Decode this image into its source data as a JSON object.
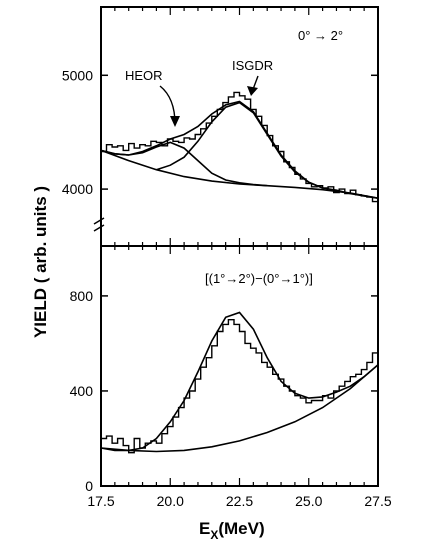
{
  "chart_data": [
    {
      "type": "line",
      "panel": "top",
      "annotation": "0° → 2°",
      "xlim": [
        17.5,
        27.5
      ],
      "ylim": [
        3500,
        5600
      ],
      "yticks": [
        4000,
        5000
      ],
      "ytick_labels": [
        "4000",
        "5000"
      ],
      "peak_labels": [
        "HEOR",
        "ISGDR"
      ],
      "series": [
        {
          "name": "Data (histogram)",
          "x": [
            17.5,
            17.7,
            17.9,
            18.1,
            18.3,
            18.5,
            18.7,
            18.9,
            19.1,
            19.3,
            19.5,
            19.7,
            19.9,
            20.1,
            20.3,
            20.5,
            20.7,
            20.9,
            21.1,
            21.3,
            21.5,
            21.7,
            21.9,
            22.1,
            22.3,
            22.5,
            22.7,
            22.9,
            23.1,
            23.3,
            23.5,
            23.7,
            23.9,
            24.1,
            24.3,
            24.5,
            24.7,
            24.9,
            25.1,
            25.3,
            25.5,
            25.7,
            25.9,
            26.1,
            26.3,
            26.5,
            26.7,
            26.9,
            27.1,
            27.3
          ],
          "y": [
            4330,
            4390,
            4370,
            4380,
            4340,
            4400,
            4360,
            4390,
            4380,
            4420,
            4410,
            4380,
            4440,
            4420,
            4410,
            4450,
            4440,
            4480,
            4530,
            4580,
            4640,
            4700,
            4760,
            4810,
            4850,
            4820,
            4790,
            4700,
            4640,
            4560,
            4470,
            4380,
            4330,
            4240,
            4190,
            4130,
            4090,
            4050,
            4020,
            4030,
            4010,
            4020,
            3970,
            4000,
            3960,
            3990,
            3950,
            3940,
            3930,
            3890
          ]
        },
        {
          "name": "Background",
          "x": [
            17.5,
            18.5,
            19.5,
            20.5,
            21.5,
            22.5,
            23.5,
            24.5,
            25.5,
            26.5,
            27.5
          ],
          "y": [
            4340,
            4250,
            4170,
            4110,
            4070,
            4045,
            4030,
            4015,
            3995,
            3965,
            3920
          ]
        },
        {
          "name": "HEOR component",
          "x": [
            17.5,
            18.0,
            18.5,
            19.0,
            19.5,
            20.0,
            20.5,
            21.0,
            21.5,
            22.0,
            22.5,
            23.0,
            23.5
          ],
          "y": [
            4340,
            4310,
            4300,
            4320,
            4370,
            4410,
            4360,
            4250,
            4140,
            4080,
            4055,
            4040,
            4030
          ]
        },
        {
          "name": "ISGDR component",
          "x": [
            19.5,
            20.0,
            20.5,
            21.0,
            21.5,
            22.0,
            22.5,
            23.0,
            23.5,
            24.0,
            24.5,
            25.0,
            25.5
          ],
          "y": [
            4170,
            4210,
            4280,
            4420,
            4590,
            4720,
            4760,
            4670,
            4480,
            4290,
            4150,
            4060,
            4010
          ]
        },
        {
          "name": "Total fit",
          "x": [
            17.5,
            18.0,
            18.5,
            19.0,
            19.5,
            20.0,
            20.5,
            21.0,
            21.5,
            22.0,
            22.5,
            23.0,
            23.5,
            24.0,
            24.5,
            25.0,
            25.5,
            26.0,
            26.5,
            27.0,
            27.5
          ],
          "y": [
            4340,
            4310,
            4300,
            4330,
            4380,
            4440,
            4480,
            4550,
            4660,
            4740,
            4770,
            4680,
            4490,
            4300,
            4160,
            4060,
            4010,
            3990,
            3960,
            3940,
            3920
          ]
        }
      ]
    },
    {
      "type": "line",
      "panel": "bottom",
      "annotation": "[(1°→2°)−(0°→1°)]",
      "xlabel": "E",
      "xlabel_sub": "X",
      "xlabel_unit": "(MeV)",
      "xlim": [
        17.5,
        27.5
      ],
      "ylim": [
        0,
        1010
      ],
      "xticks": [
        17.5,
        20.0,
        22.5,
        25.0,
        27.5
      ],
      "xtick_labels": [
        "17.5",
        "20.0",
        "22.5",
        "25.0",
        "27.5"
      ],
      "yticks": [
        0,
        400,
        800
      ],
      "ytick_labels": [
        "0",
        "400",
        "800"
      ],
      "series": [
        {
          "name": "Data (histogram)",
          "x": [
            17.5,
            17.7,
            17.9,
            18.1,
            18.3,
            18.5,
            18.7,
            18.9,
            19.1,
            19.3,
            19.5,
            19.7,
            19.9,
            20.1,
            20.3,
            20.5,
            20.7,
            20.9,
            21.1,
            21.3,
            21.5,
            21.7,
            21.9,
            22.1,
            22.3,
            22.5,
            22.7,
            22.9,
            23.1,
            23.3,
            23.5,
            23.7,
            23.9,
            24.1,
            24.3,
            24.5,
            24.7,
            24.9,
            25.1,
            25.3,
            25.5,
            25.7,
            25.9,
            26.1,
            26.3,
            26.5,
            26.7,
            26.9,
            27.1,
            27.3
          ],
          "y": [
            200,
            210,
            180,
            200,
            170,
            140,
            200,
            160,
            180,
            190,
            180,
            220,
            250,
            290,
            330,
            370,
            400,
            450,
            500,
            540,
            590,
            650,
            680,
            700,
            680,
            650,
            600,
            580,
            560,
            520,
            500,
            470,
            450,
            420,
            400,
            380,
            370,
            350,
            360,
            360,
            380,
            370,
            400,
            420,
            440,
            460,
            470,
            490,
            520,
            560
          ]
        },
        {
          "name": "Background",
          "x": [
            17.5,
            18.5,
            19.5,
            20.5,
            21.5,
            22.5,
            23.5,
            24.5,
            25.5,
            26.5,
            27.5
          ],
          "y": [
            160,
            150,
            145,
            150,
            165,
            190,
            225,
            270,
            330,
            410,
            510
          ]
        },
        {
          "name": "Total fit",
          "x": [
            17.5,
            18.0,
            18.5,
            19.0,
            19.5,
            20.0,
            20.5,
            21.0,
            21.5,
            22.0,
            22.5,
            23.0,
            23.5,
            24.0,
            24.5,
            25.0,
            25.5,
            26.0,
            26.5,
            27.0,
            27.5
          ],
          "y": [
            160,
            150,
            150,
            160,
            200,
            270,
            360,
            480,
            610,
            710,
            730,
            660,
            540,
            440,
            390,
            370,
            375,
            395,
            420,
            460,
            510
          ]
        }
      ]
    }
  ],
  "ylabel": "YIELD ( arb. units )"
}
